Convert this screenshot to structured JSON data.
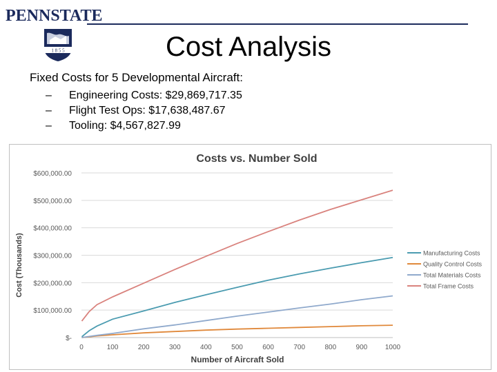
{
  "header": {
    "logo_text": "PENNSTATE",
    "shield_text": "1 8 5 5",
    "shield_icon": "penn-state-shield-icon"
  },
  "slide": {
    "title": "Cost Analysis",
    "intro": "Fixed Costs for 5 Developmental Aircraft:",
    "bullets": [
      "Engineering Costs: $29,869,717.35",
      "Flight Test Ops:  $17,638,487.67",
      "Tooling: $4,567,827.99"
    ],
    "bullet_marker": "–"
  },
  "chart_data": {
    "type": "line",
    "title": "Costs vs. Number Sold",
    "xlabel": "Number of Aircraft Sold",
    "ylabel": "Cost (Thousands)",
    "xlim": [
      0,
      1000
    ],
    "ylim": [
      0,
      600000
    ],
    "x_ticks": [
      0,
      100,
      200,
      300,
      400,
      500,
      600,
      700,
      800,
      900,
      1000
    ],
    "y_ticks": [
      0,
      100000,
      200000,
      300000,
      400000,
      500000,
      600000
    ],
    "y_tick_labels": [
      "$-",
      "$100,000.00",
      "$200,000.00",
      "$300,000.00",
      "$400,000.00",
      "$500,000.00",
      "$600,000.00"
    ],
    "grid": true,
    "legend_position": "right",
    "x": [
      1,
      25,
      50,
      100,
      200,
      300,
      400,
      500,
      600,
      700,
      800,
      900,
      1000
    ],
    "series": [
      {
        "name": "Manufacturing Costs",
        "color": "#4a9bb0",
        "values": [
          3000,
          25000,
          42000,
          67000,
          97000,
          128000,
          156000,
          183000,
          209000,
          232000,
          253000,
          273000,
          292000
        ]
      },
      {
        "name": "Quality Control Costs",
        "color": "#e0883a",
        "values": [
          0,
          3000,
          6000,
          10000,
          17000,
          22000,
          27000,
          31000,
          34000,
          37000,
          40000,
          43000,
          45000
        ]
      },
      {
        "name": "Total Materials Costs",
        "color": "#8fa9cc",
        "values": [
          0,
          4000,
          8000,
          15000,
          32000,
          46000,
          62000,
          78000,
          93000,
          108000,
          122000,
          138000,
          152000
        ]
      },
      {
        "name": "Total Frame Costs",
        "color": "#d9827d",
        "values": [
          60000,
          95000,
          120000,
          148000,
          198000,
          248000,
          296000,
          343000,
          386000,
          428000,
          467000,
          502000,
          537000
        ]
      }
    ]
  }
}
